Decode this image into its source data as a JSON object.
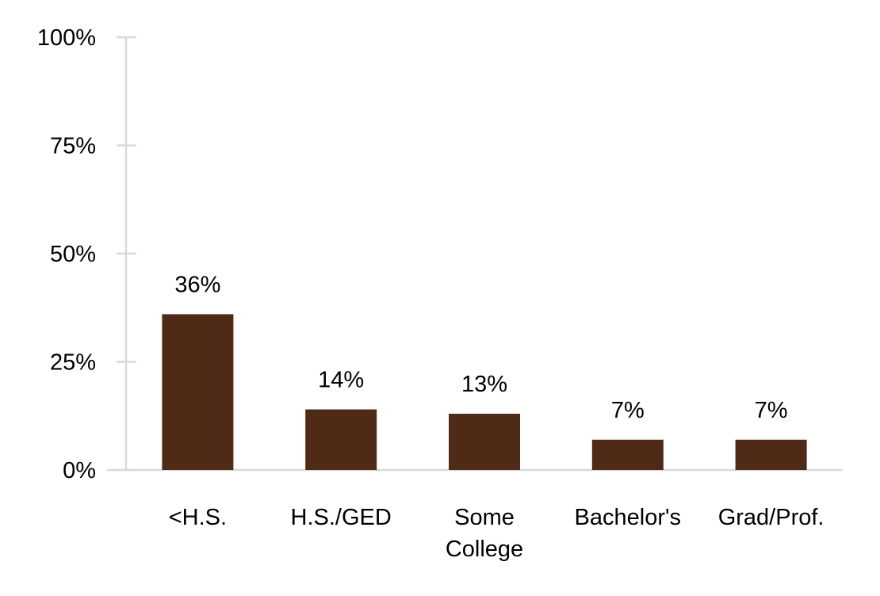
{
  "chart_data": {
    "type": "bar",
    "title": "",
    "xlabel": "",
    "ylabel": "",
    "categories": [
      [
        "<H.S."
      ],
      [
        "H.S./GED"
      ],
      [
        "Some",
        "College"
      ],
      [
        "Bachelor's"
      ],
      [
        "Grad/Prof."
      ]
    ],
    "values": [
      36,
      14,
      13,
      7,
      7
    ],
    "data_labels": [
      "36%",
      "14%",
      "13%",
      "7%",
      "7%"
    ],
    "ylim": [
      0,
      100
    ],
    "yticks": [
      0,
      25,
      50,
      75,
      100
    ],
    "ytick_labels": [
      "0%",
      "25%",
      "50%",
      "75%",
      "100%"
    ],
    "grid": false,
    "legend": "none",
    "colors": {
      "bar": "#4e2a17",
      "axis": "#d9d9d9"
    }
  }
}
